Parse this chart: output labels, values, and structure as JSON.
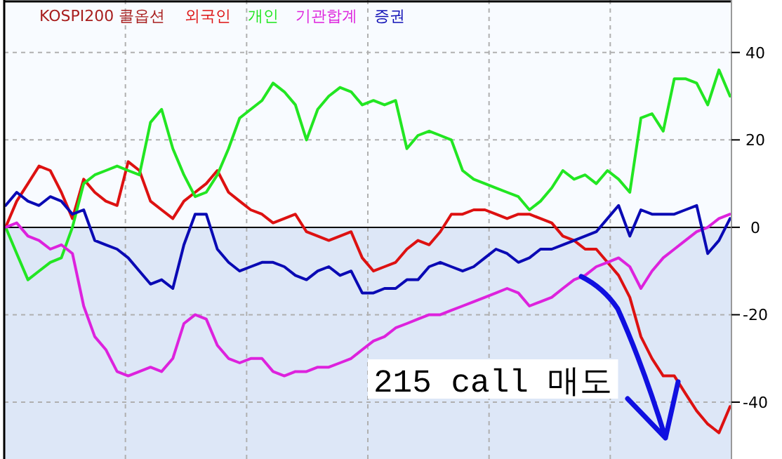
{
  "chart_data": {
    "type": "line",
    "title": "KOSPI200 콜옵션",
    "categories": [
      null,
      null,
      null,
      null,
      null,
      null,
      null,
      null,
      null,
      null,
      null,
      null,
      null,
      null,
      null,
      null,
      null,
      null,
      null,
      null,
      null,
      null,
      null,
      null,
      null,
      null,
      null,
      null,
      null,
      null,
      null,
      null,
      null,
      null,
      null,
      null,
      null,
      null,
      null,
      null,
      null,
      null,
      null,
      null,
      null,
      null,
      null,
      null,
      null,
      null,
      null,
      null,
      null,
      null,
      null,
      null,
      null,
      null,
      null,
      null,
      null,
      null,
      null,
      null,
      null,
      null
    ],
    "series": [
      {
        "name": "외국인",
        "color": "#dd1111",
        "values": [
          0,
          6,
          10,
          14,
          13,
          8,
          2,
          11,
          8,
          6,
          5,
          15,
          13,
          6,
          4,
          2,
          6,
          8,
          10,
          13,
          8,
          6,
          4,
          3,
          1,
          2,
          3,
          -1,
          -2,
          -3,
          -2,
          -1,
          -7,
          -10,
          -9,
          -8,
          -5,
          -3,
          -4,
          -1,
          3,
          3,
          4,
          4,
          3,
          2,
          3,
          3,
          2,
          1,
          -2,
          -3,
          -5,
          -5,
          -8,
          -11,
          -16,
          -25,
          -30,
          -34,
          -34,
          -38,
          -42,
          -45,
          -47,
          -41
        ]
      },
      {
        "name": "개인",
        "color": "#22e622",
        "values": [
          0,
          -6,
          -12,
          -10,
          -8,
          -7,
          0,
          10,
          12,
          13,
          14,
          13,
          12,
          24,
          27,
          18,
          12,
          7,
          8,
          12,
          18,
          25,
          27,
          29,
          33,
          31,
          28,
          20,
          27,
          30,
          32,
          31,
          28,
          29,
          28,
          29,
          18,
          21,
          22,
          21,
          20,
          13,
          11,
          10,
          9,
          8,
          7,
          4,
          6,
          9,
          13,
          11,
          12,
          10,
          13,
          11,
          8,
          25,
          26,
          22,
          34,
          34,
          33,
          28,
          36,
          30
        ]
      },
      {
        "name": "기관합계",
        "color": "#dd22dd",
        "values": [
          0,
          1,
          -2,
          -3,
          -5,
          -4,
          -6,
          -18,
          -25,
          -28,
          -33,
          -34,
          -33,
          -32,
          -33,
          -30,
          -22,
          -20,
          -21,
          -27,
          -30,
          -31,
          -30,
          -30,
          -33,
          -34,
          -33,
          -33,
          -32,
          -32,
          -31,
          -30,
          -28,
          -26,
          -25,
          -23,
          -22,
          -21,
          -20,
          -20,
          -19,
          -18,
          -17,
          -16,
          -15,
          -14,
          -15,
          -18,
          -17,
          -16,
          -14,
          -12,
          -11,
          -9,
          -8,
          -7,
          -9,
          -14,
          -10,
          -7,
          -5,
          -3,
          -1,
          0,
          2,
          3
        ]
      },
      {
        "name": "증권",
        "color": "#0a0ab4",
        "values": [
          5,
          8,
          6,
          5,
          7,
          6,
          3,
          4,
          -3,
          -4,
          -5,
          -7,
          -10,
          -13,
          -12,
          -14,
          -4,
          3,
          3,
          -5,
          -8,
          -10,
          -9,
          -8,
          -8,
          -9,
          -11,
          -12,
          -10,
          -9,
          -11,
          -10,
          -15,
          -15,
          -14,
          -14,
          -12,
          -12,
          -9,
          -8,
          -9,
          -10,
          -9,
          -7,
          -5,
          -6,
          -8,
          -7,
          -5,
          -5,
          -4,
          -3,
          -2,
          -1,
          2,
          5,
          -2,
          4,
          3,
          3,
          3,
          4,
          5,
          -6,
          -3,
          2
        ]
      }
    ],
    "ylim": [
      -53,
      52
    ],
    "yticks": [
      {
        "value": -40,
        "label": "-40"
      },
      {
        "value": -20,
        "label": "-20"
      },
      0,
      20,
      40
    ],
    "ref_lines": [
      {
        "axis": "y",
        "value": 0,
        "color": "#000000"
      }
    ],
    "bands": [
      {
        "axis": "y",
        "from": -53,
        "to": 0,
        "color": "#dde7f7"
      }
    ],
    "grid": true,
    "legend": "top left",
    "annotations": [
      "215 call 매도"
    ]
  }
}
